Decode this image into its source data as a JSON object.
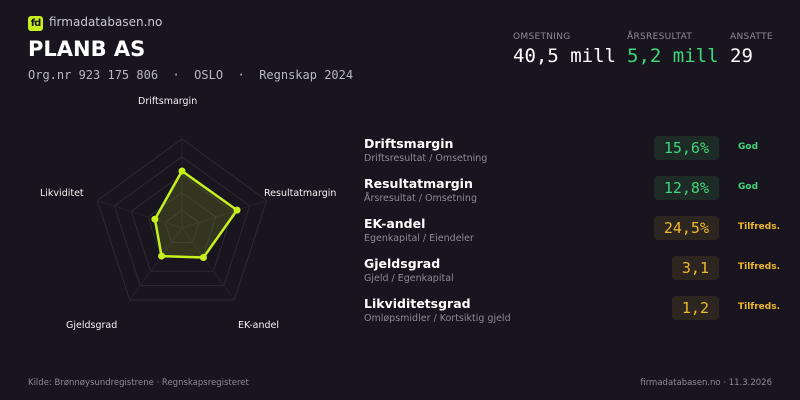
{
  "brand": {
    "logo_text": "fd",
    "name": "firmadatabasen.no"
  },
  "company": {
    "name": "PLANB AS",
    "meta": "Org.nr 923 175 806  ·  OSLO  ·  Regnskap 2024"
  },
  "stats": [
    {
      "label": "OMSETNING",
      "value": "40,5 mill",
      "color": "#ffffff"
    },
    {
      "label": "ÅRSRESULTAT",
      "value": "5,2 mill",
      "color": "#3fd67a"
    },
    {
      "label": "ANSATTE",
      "value": "29",
      "color": "#ffffff"
    }
  ],
  "chart_data": {
    "type": "radar",
    "axes": [
      "Driftsmargin",
      "Resultatmargin",
      "EK-andel",
      "Gjeldsgrad",
      "Likviditet"
    ],
    "values": [
      0.64,
      0.65,
      0.41,
      0.39,
      0.32
    ],
    "range": [
      0,
      1
    ],
    "rings": 5,
    "color": "#c8f01e"
  },
  "ratios": [
    {
      "name": "Driftsmargin",
      "formula": "Driftsresultat / Omsetning",
      "value": "15,6%",
      "status": "God",
      "level": "good"
    },
    {
      "name": "Resultatmargin",
      "formula": "Årsresultat / Omsetning",
      "value": "12,8%",
      "status": "God",
      "level": "good"
    },
    {
      "name": "EK-andel",
      "formula": "Egenkapital / Eiendeler",
      "value": "24,5%",
      "status": "Tilfreds.",
      "level": "ok"
    },
    {
      "name": "Gjeldsgrad",
      "formula": "Gjeld / Egenkapital",
      "value": "3,1",
      "status": "Tilfreds.",
      "level": "ok"
    },
    {
      "name": "Likviditetsgrad",
      "formula": "Omløpsmidler / Kortsiktig gjeld",
      "value": "1,2",
      "status": "Tilfreds.",
      "level": "ok"
    }
  ],
  "footer": {
    "source": "Kilde: Brønnøysundregistrene · Regnskapsregisteret",
    "site": "firmadatabasen.no · 11.3.2026"
  }
}
